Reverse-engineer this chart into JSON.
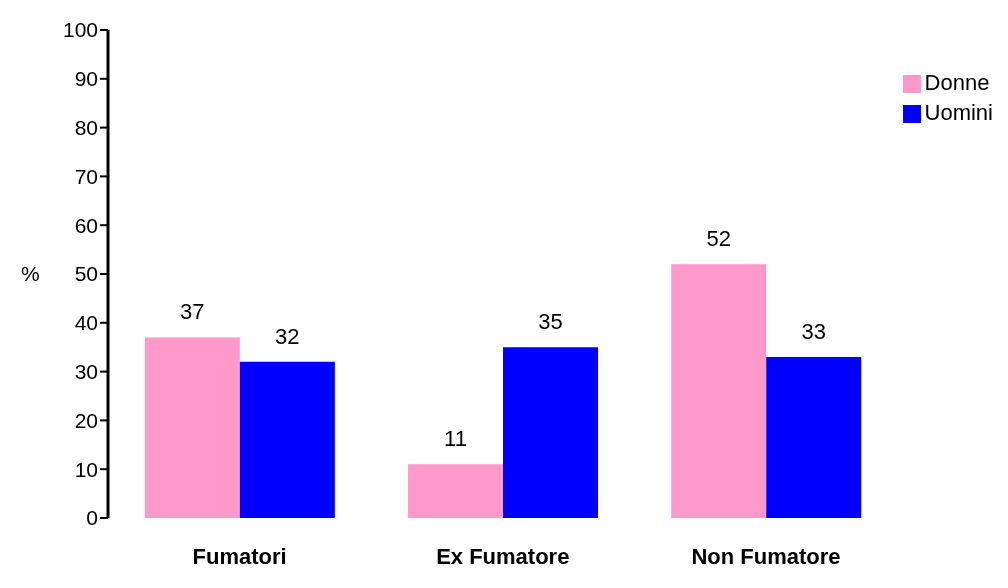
{
  "chart_data": {
    "type": "bar",
    "ylabel": "%",
    "categories": [
      "Fumatori",
      "Ex Fumatore",
      "Non Fumatore"
    ],
    "series": [
      {
        "name": "Donne",
        "color": "#ff99cc",
        "values": [
          37,
          11,
          52
        ]
      },
      {
        "name": "Uomini",
        "color": "#0000ff",
        "values": [
          32,
          35,
          33
        ]
      }
    ],
    "ylim": [
      0,
      100
    ],
    "yticks": [
      0,
      10,
      20,
      30,
      40,
      50,
      60,
      70,
      80,
      90,
      100
    ],
    "grid": false,
    "legend": "top right",
    "data_labels": true
  }
}
